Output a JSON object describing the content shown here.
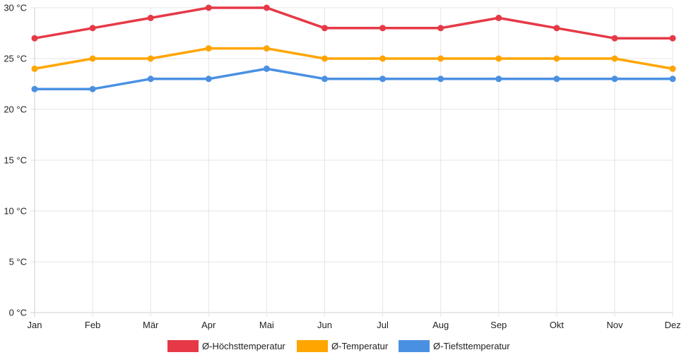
{
  "chart_data": {
    "type": "line",
    "title": "",
    "xlabel": "",
    "ylabel": "",
    "categories": [
      "Jan",
      "Feb",
      "Mär",
      "Apr",
      "Mai",
      "Jun",
      "Jul",
      "Aug",
      "Sep",
      "Okt",
      "Nov",
      "Dez"
    ],
    "ylim": [
      0,
      30
    ],
    "yticks": [
      0,
      5,
      10,
      15,
      20,
      25,
      30
    ],
    "ytick_labels": [
      "0 °C",
      "5 °C",
      "10 °C",
      "15 °C",
      "20 °C",
      "25 °C",
      "30 °C"
    ],
    "grid": true,
    "legend_position": "bottom",
    "series": [
      {
        "name": "Ø-Höchsttemperatur",
        "color": "#e63946",
        "values": [
          27,
          28,
          29,
          30,
          30,
          28,
          28,
          28,
          29,
          28,
          27,
          27
        ]
      },
      {
        "name": "Ø-Temperatur",
        "color": "#ffa500",
        "values": [
          24,
          25,
          25,
          26,
          26,
          25,
          25,
          25,
          25,
          25,
          25,
          24
        ]
      },
      {
        "name": "Ø-Tiefsttemperatur",
        "color": "#4a90e2",
        "values": [
          22,
          22,
          23,
          23,
          24,
          23,
          23,
          23,
          23,
          23,
          23,
          23
        ]
      }
    ]
  }
}
